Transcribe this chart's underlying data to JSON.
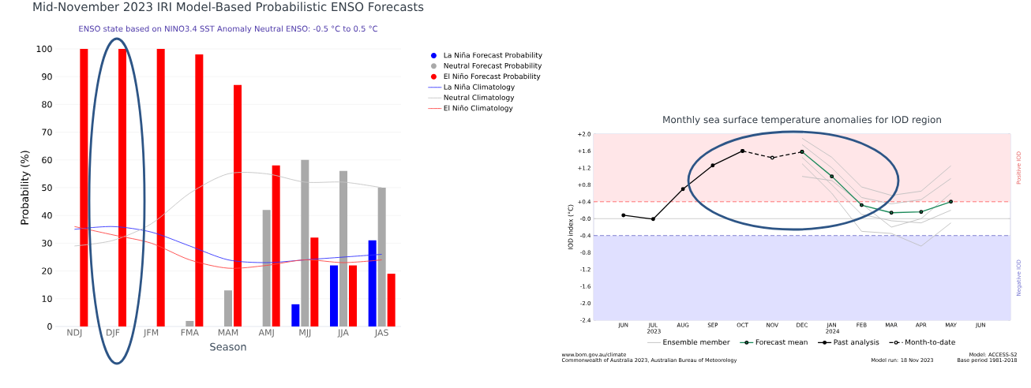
{
  "chart_data": [
    {
      "type": "bar",
      "title": "Mid-November 2023 IRI Model-Based Probabilistic ENSO Forecasts",
      "subtitle": "ENSO state based on NINO3.4 SST Anomaly Neutral ENSO: -0.5 °C to 0.5 °C",
      "xlabel": "Season",
      "ylabel": "Probability (%)",
      "categories": [
        "NDJ",
        "DJF",
        "JFM",
        "FMA",
        "MAM",
        "AMJ",
        "MJJ",
        "JJA",
        "JAS"
      ],
      "series": [
        {
          "name": "La Niña Forecast Probability",
          "color": "#0000ff",
          "values": [
            0,
            0,
            0,
            0,
            0,
            0,
            8,
            22,
            31
          ]
        },
        {
          "name": "Neutral Forecast Probability",
          "color": "#a9a9a9",
          "values": [
            0,
            0,
            0,
            2,
            13,
            42,
            60,
            56,
            50
          ]
        },
        {
          "name": "El Niño Forecast Probability",
          "color": "#ff0000",
          "values": [
            100,
            100,
            100,
            98,
            87,
            58,
            32,
            22,
            19
          ]
        },
        {
          "name": "La Niña Climatology",
          "type": "line",
          "color": "#3333ff",
          "values": [
            35,
            36,
            34,
            29,
            24,
            23,
            24,
            25,
            26
          ]
        },
        {
          "name": "Neutral Climatology",
          "type": "line",
          "color": "#c4c4c4",
          "values": [
            29,
            31,
            37,
            48,
            55,
            55,
            52,
            52,
            50
          ]
        },
        {
          "name": "El Niño Climatology",
          "type": "line",
          "color": "#ff4444",
          "values": [
            36,
            33,
            30,
            24,
            21,
            22,
            24,
            23,
            24
          ]
        }
      ],
      "ylim": [
        0,
        100
      ],
      "yticks": [
        0,
        10,
        20,
        30,
        40,
        50,
        60,
        70,
        80,
        90,
        100
      ],
      "grid": "y",
      "legend": "right"
    },
    {
      "type": "line",
      "title": "Monthly sea surface temperature anomalies for IOD region",
      "ylabel": "IOD index (°C)",
      "xlim": [
        "2023-05",
        "2024-07"
      ],
      "xticks": [
        {
          "value": "2023-06",
          "label": "JUN"
        },
        {
          "value": "2023-07",
          "label": "JUL 2023"
        },
        {
          "value": "2023-08",
          "label": "AUG"
        },
        {
          "value": "2023-09",
          "label": "SEP"
        },
        {
          "value": "2023-10",
          "label": "OCT"
        },
        {
          "value": "2023-11",
          "label": "NOV"
        },
        {
          "value": "2023-12",
          "label": "DEC"
        },
        {
          "value": "2024-01",
          "label": "JAN 2024"
        },
        {
          "value": "2024-02",
          "label": "FEB"
        },
        {
          "value": "2024-03",
          "label": "MAR"
        },
        {
          "value": "2024-04",
          "label": "APR"
        },
        {
          "value": "2024-05",
          "label": "MAY"
        },
        {
          "value": "2024-06",
          "label": "JUN"
        }
      ],
      "ylim": [
        -2.4,
        2.0
      ],
      "yticks": [
        {
          "value": 2.0,
          "label": "+2.0"
        },
        {
          "value": 1.6,
          "label": "+1.6"
        },
        {
          "value": 1.2,
          "label": "+1.2"
        },
        {
          "value": 0.8,
          "label": "+0.8"
        },
        {
          "value": 0.4,
          "label": "+0.4"
        },
        {
          "value": 0,
          "label": "-0.0"
        },
        {
          "value": -0.4,
          "label": "-0.4"
        },
        {
          "value": -0.8,
          "label": "-0.8"
        },
        {
          "value": -1.2,
          "label": "-1.2"
        },
        {
          "value": -1.6,
          "label": "-1.6"
        },
        {
          "value": -2.0,
          "label": "-2.0"
        },
        {
          "value": -2.4,
          "label": "-2.4"
        }
      ],
      "bands": [
        {
          "axis": "y",
          "from": 0.4,
          "to": 2.0,
          "label": "Positive IOD",
          "color": "#ffe6e8"
        },
        {
          "axis": "y",
          "from": -2.4,
          "to": -0.4,
          "label": "Negative IOD",
          "color": "#e0e0ff"
        }
      ],
      "ref_lines": [
        {
          "axis": "y",
          "value": 0.4,
          "color": "#ff6666",
          "line_style": "dashed"
        },
        {
          "axis": "y",
          "value": 0,
          "color": "#c8c8c8",
          "line_style": "solid"
        },
        {
          "axis": "y",
          "value": -0.4,
          "color": "#7777cc",
          "line_style": "dashed"
        }
      ],
      "series": [
        {
          "name": "Ensemble member",
          "color": "#c0c0c0",
          "x": [
            "2023-12",
            "2024-01",
            "2024-02",
            "2024-03",
            "2024-04",
            "2024-05"
          ],
          "values": [
            1.9,
            1.45,
            0.75,
            0.55,
            0.65,
            1.25
          ]
        },
        {
          "color": "#c0c0c0",
          "x": [
            "2023-12",
            "2024-01",
            "2024-02",
            "2024-03",
            "2024-04",
            "2024-05"
          ],
          "values": [
            1.75,
            1.2,
            0.5,
            0.35,
            0.45,
            0.95
          ]
        },
        {
          "color": "#c0c0c0",
          "x": [
            "2023-12",
            "2024-01",
            "2024-02",
            "2024-03",
            "2024-04",
            "2024-05"
          ],
          "values": [
            1.45,
            0.8,
            0.1,
            -0.05,
            -0.1,
            0.2
          ]
        },
        {
          "color": "#c0c0c0",
          "x": [
            "2023-12",
            "2024-01",
            "2024-02",
            "2024-03",
            "2024-04",
            "2024-05"
          ],
          "values": [
            1.3,
            0.6,
            -0.3,
            -0.35,
            -0.65,
            -0.1
          ]
        },
        {
          "color": "#c0c0c0",
          "x": [
            "2023-12",
            "2024-01",
            "2024-02",
            "2024-03",
            "2024-04",
            "2024-05"
          ],
          "values": [
            1.0,
            0.9,
            0.35,
            -0.2,
            0.0,
            0.6
          ]
        },
        {
          "name": "Forecast mean",
          "color": "#1b8a5a",
          "marker": "circle",
          "x": [
            "2023-12",
            "2024-01",
            "2024-02",
            "2024-03",
            "2024-04",
            "2024-05"
          ],
          "values": [
            1.58,
            1.0,
            0.32,
            0.14,
            0.16,
            0.4
          ]
        },
        {
          "name": "Past analysis",
          "color": "#000000",
          "marker": "circle",
          "x": [
            "2023-06",
            "2023-07",
            "2023-08",
            "2023-09",
            "2023-10"
          ],
          "values": [
            0.08,
            -0.01,
            0.7,
            1.26,
            1.6
          ]
        },
        {
          "name": "Month-to-date",
          "color": "#000000",
          "marker": "circle",
          "line_style": "dashed",
          "x": [
            "2023-10",
            "2023-11",
            "2023-12"
          ],
          "values": [
            1.6,
            1.44,
            1.58
          ]
        }
      ],
      "legend": "bottom",
      "annotations": [
        "www.bom.gov.au/climate",
        "Commonwealth of Australia 2023, Australian Bureau of Meteorology",
        "Model: ACCESS-S2",
        "Model run: 18 Nov 2023",
        "Base period 1981-2018"
      ]
    }
  ]
}
